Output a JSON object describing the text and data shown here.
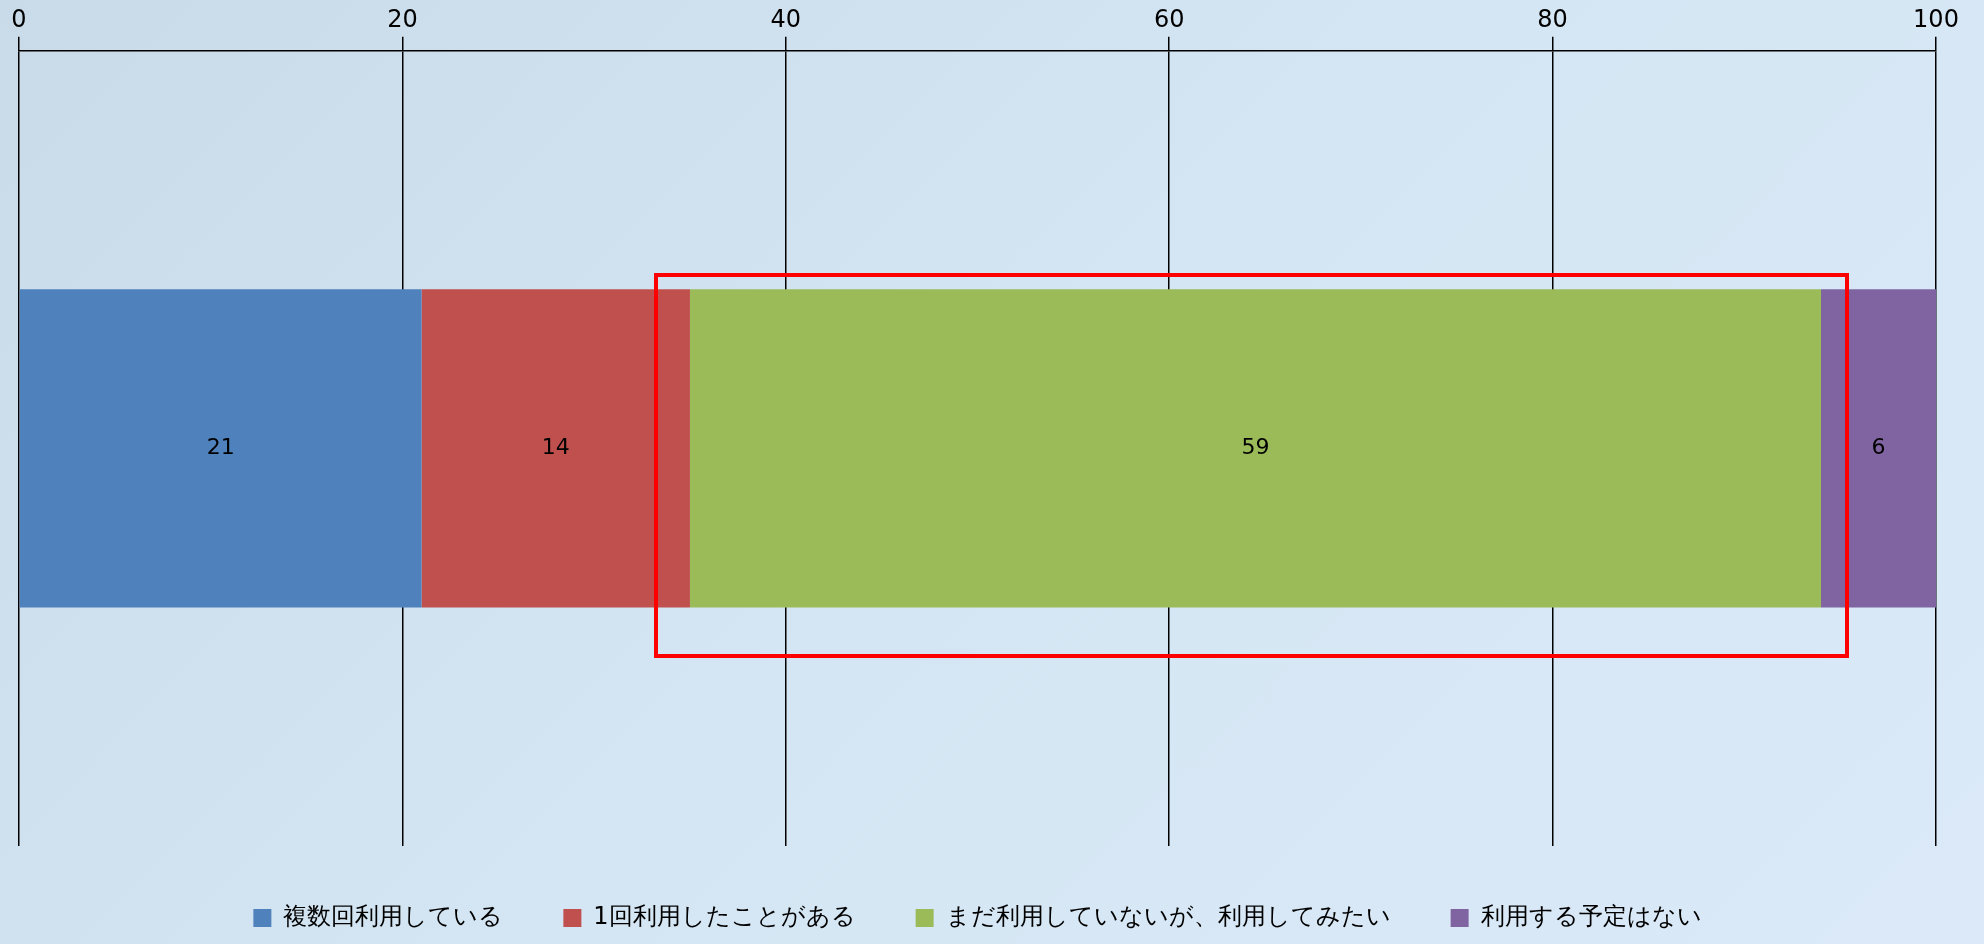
{
  "chart_data": {
    "type": "bar",
    "orientation": "horizontal",
    "stacked": true,
    "categories": [
      null
    ],
    "series": [
      {
        "name": "複数回利用している",
        "color": "#4f81bd",
        "values": [
          21
        ]
      },
      {
        "name": "1回利用したことがある",
        "color": "#c0504d",
        "values": [
          14
        ]
      },
      {
        "name": "まだ利用していないが、利用してみたい",
        "color": "#9bbb59",
        "values": [
          59
        ]
      },
      {
        "name": "利用する予定はない",
        "color": "#8064a2",
        "values": [
          6
        ]
      }
    ],
    "xlim": [
      0,
      100
    ],
    "xticks": [
      0,
      20,
      40,
      60,
      80,
      100
    ],
    "grid": "x",
    "legend": "bottom",
    "data_labels": true
  }
}
